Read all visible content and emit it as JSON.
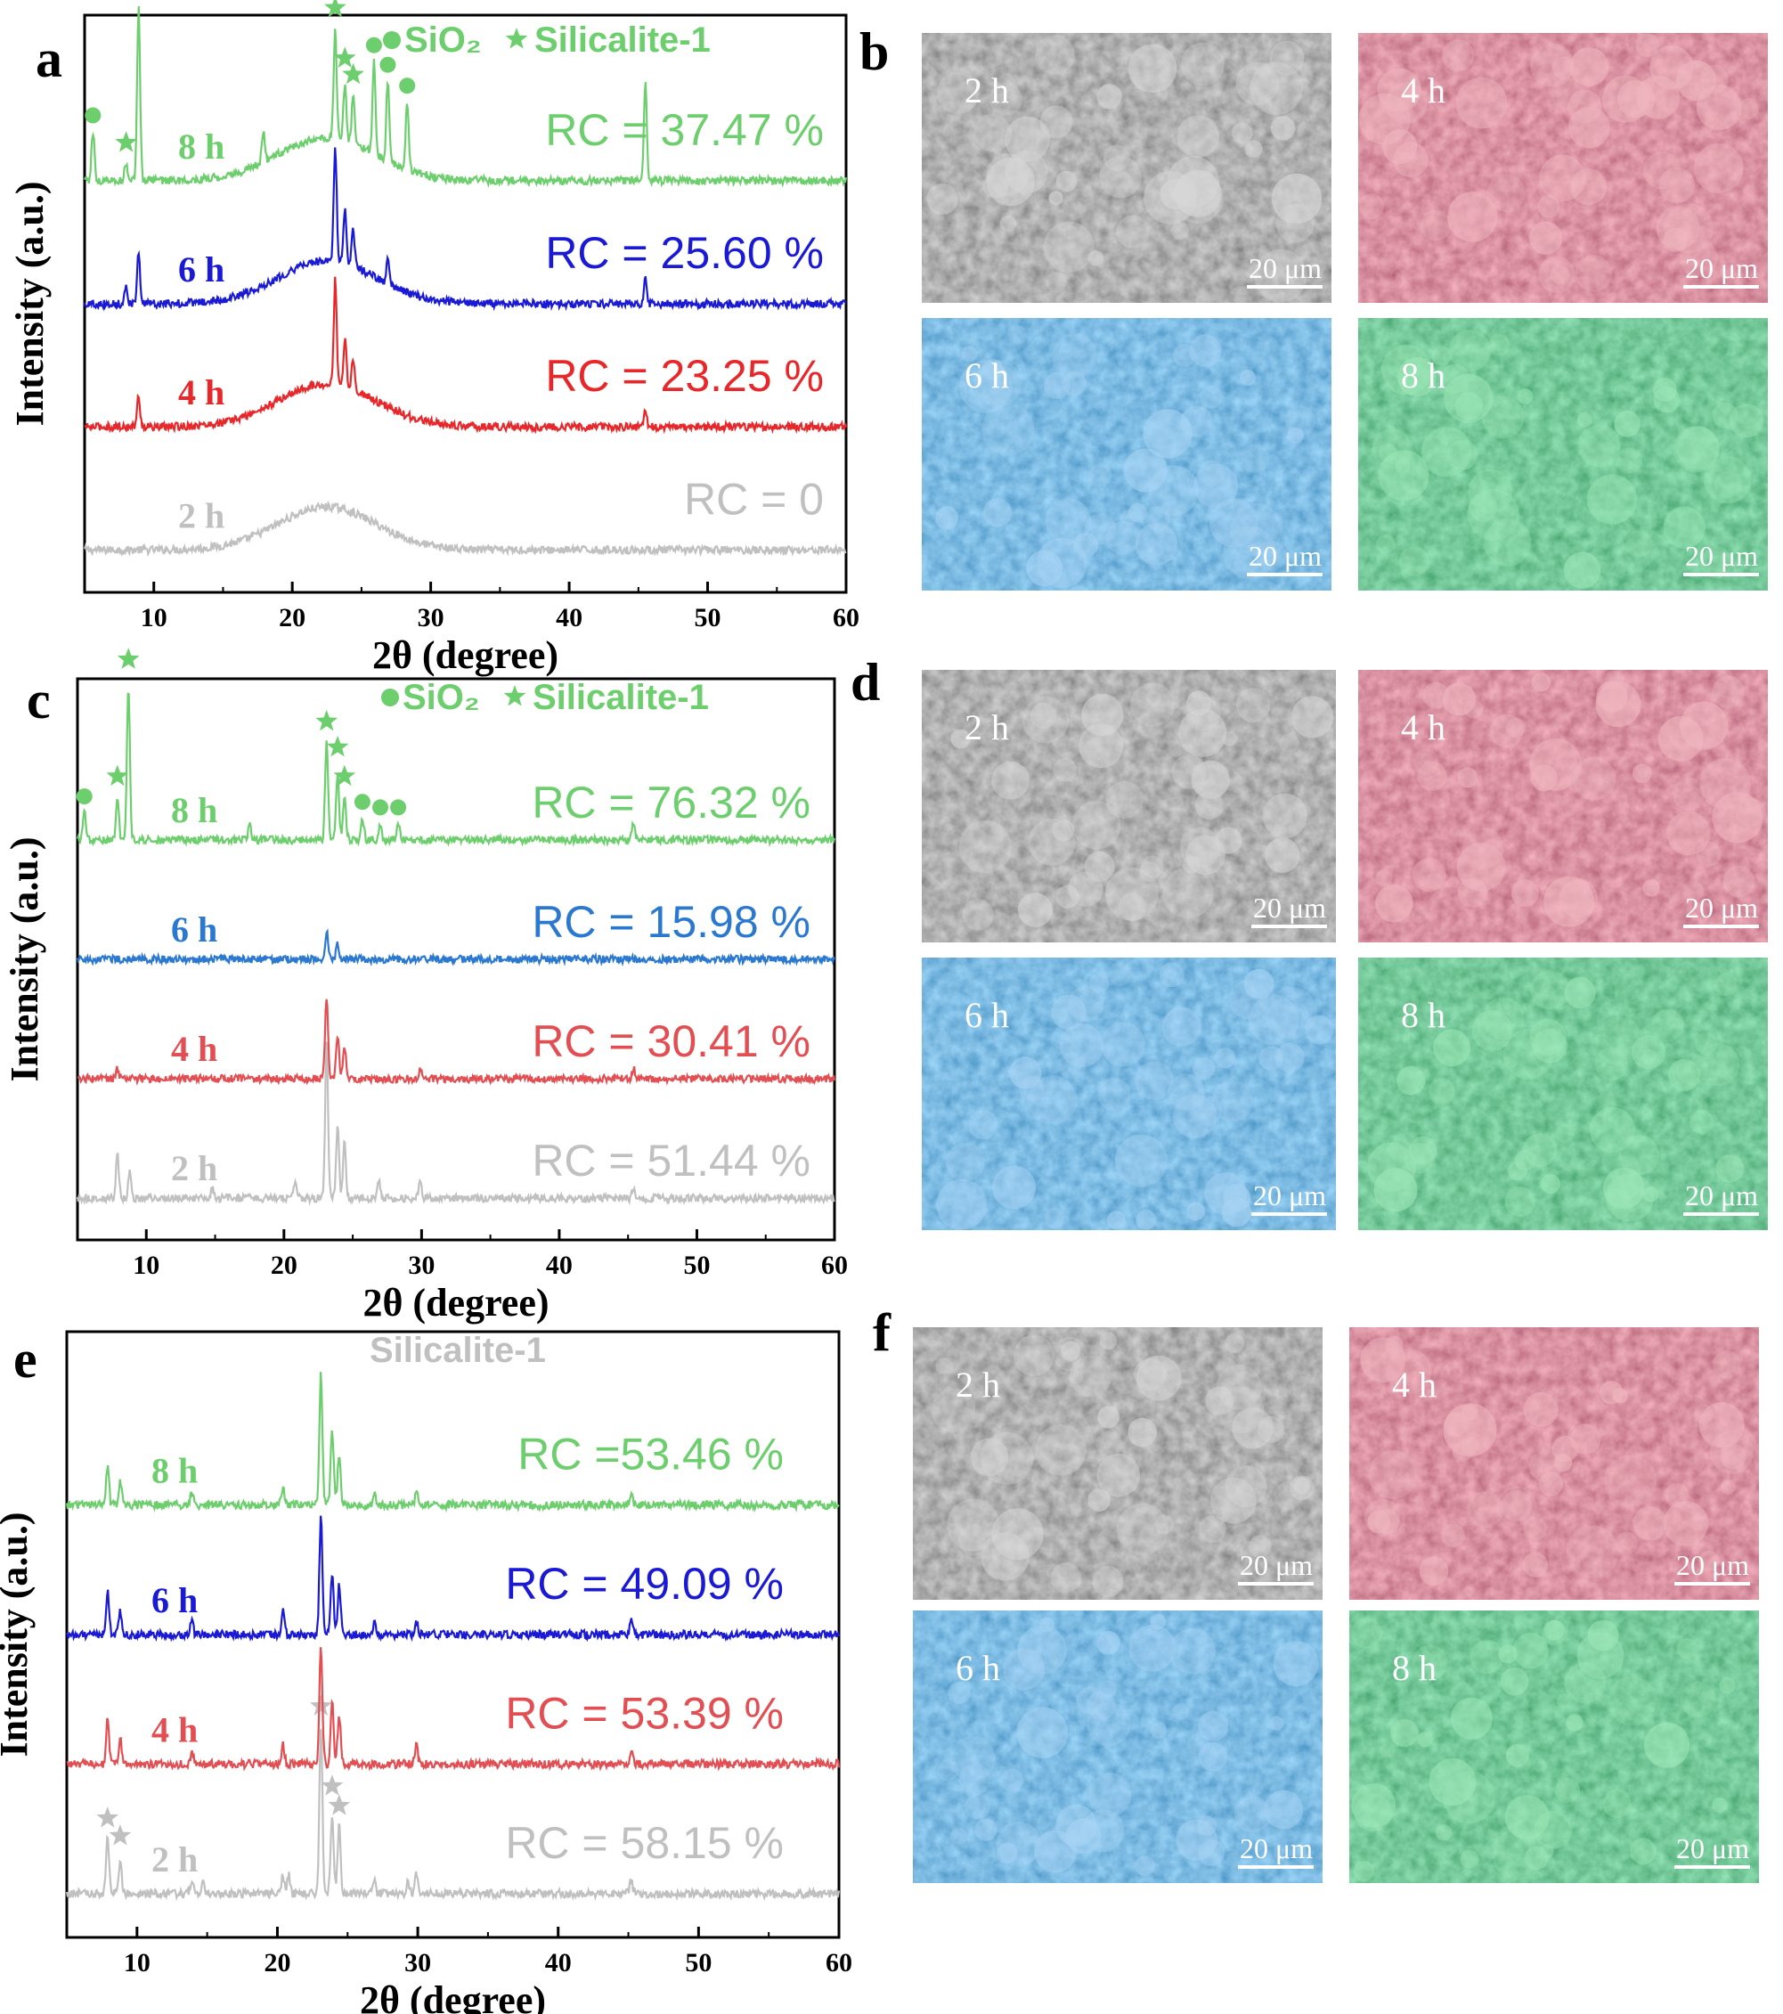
{
  "figure": {
    "panels": {
      "a": "a",
      "b": "b",
      "c": "c",
      "d": "d",
      "e": "e",
      "f": "f"
    },
    "sem_scale_label": "20 μm"
  },
  "colors": {
    "t2h": "#c0c0c0",
    "t4h": "#e8272a",
    "t6h_a": "#1a1ad6",
    "t6h_c": "#2a78d0",
    "t8h": "#6cce6c",
    "gray_sem": "#707070",
    "red_sem": "#c84a5c",
    "blue_sem": "#3d8ed0",
    "green_sem": "#2ea860"
  },
  "chart_data": [
    {
      "panel": "a",
      "type": "line",
      "xlabel": "2θ (degree)",
      "ylabel": "Intensity (a.u.)",
      "xlim": [
        5,
        60
      ],
      "xticks": [
        10,
        20,
        30,
        40,
        50,
        60
      ],
      "legend": {
        "circle_label": "SiO₂",
        "star_label": "Silicalite-1"
      },
      "series": [
        {
          "name": "2 h",
          "rc": "RC = 0",
          "color": "#c0c0c0",
          "base": 5,
          "profile": "amorphous",
          "peaks": [],
          "circles": [],
          "stars": []
        },
        {
          "name": "4 h",
          "rc": "RC = 23.25 %",
          "color": "#e8272a",
          "base": 30,
          "profile": "amorphous",
          "peaks": [
            [
              8.9,
              5
            ],
            [
              23.1,
              17
            ],
            [
              23.8,
              8
            ],
            [
              24.4,
              5
            ],
            [
              45.5,
              3
            ]
          ],
          "circles": [],
          "stars": []
        },
        {
          "name": "6 h",
          "rc": "RC = 25.60 %",
          "color": "#1a1ad6",
          "base": 55,
          "profile": "amorphous",
          "peaks": [
            [
              8.0,
              3
            ],
            [
              8.9,
              8
            ],
            [
              23.1,
              19
            ],
            [
              23.8,
              9
            ],
            [
              24.4,
              6
            ],
            [
              26.9,
              4
            ],
            [
              45.5,
              4
            ]
          ],
          "circles": [],
          "stars": []
        },
        {
          "name": "8 h",
          "rc": "RC = 37.47 %",
          "color": "#6cce6c",
          "base": 80,
          "profile": "amorphous",
          "peaks": [
            [
              5.6,
              8
            ],
            [
              8.0,
              3
            ],
            [
              8.9,
              28
            ],
            [
              17.9,
              5
            ],
            [
              23.1,
              18
            ],
            [
              23.8,
              9
            ],
            [
              24.4,
              8
            ],
            [
              25.9,
              15
            ],
            [
              26.9,
              13
            ],
            [
              28.3,
              11
            ],
            [
              45.5,
              16
            ]
          ],
          "circles": [
            5.6,
            25.9,
            26.9,
            28.3
          ],
          "stars": [
            8.0,
            8.9,
            23.1,
            23.8,
            24.4
          ]
        }
      ]
    },
    {
      "panel": "c",
      "type": "line",
      "xlabel": "2θ (degree)",
      "ylabel": "Intensity (a.u.)",
      "xlim": [
        5,
        60
      ],
      "xticks": [
        10,
        20,
        30,
        40,
        50,
        60
      ],
      "legend": {
        "circle_label": "SiO₂",
        "star_label": "Silicalite-1"
      },
      "series": [
        {
          "name": "2 h",
          "rc": "RC = 51.44 %",
          "color": "#c0c0c0",
          "base": 5,
          "profile": "crystalline",
          "peaks": [
            [
              7.9,
              8
            ],
            [
              8.8,
              5
            ],
            [
              14.8,
              2
            ],
            [
              20.8,
              3
            ],
            [
              23.1,
              28
            ],
            [
              23.9,
              13
            ],
            [
              24.4,
              10
            ],
            [
              26.9,
              3
            ],
            [
              29.9,
              3
            ],
            [
              45.4,
              2
            ]
          ],
          "circles": [],
          "stars": []
        },
        {
          "name": "4 h",
          "rc": "RC = 30.41 %",
          "color": "#e24e52",
          "base": 30,
          "profile": "crystalline",
          "peaks": [
            [
              7.9,
              2
            ],
            [
              23.1,
              15
            ],
            [
              23.9,
              8
            ],
            [
              24.4,
              6
            ],
            [
              29.9,
              2
            ],
            [
              45.4,
              2
            ]
          ],
          "circles": [],
          "stars": []
        },
        {
          "name": "6 h",
          "rc": "RC = 15.98 %",
          "color": "#2a78d0",
          "base": 55,
          "profile": "crystalline",
          "peaks": [
            [
              23.1,
              5
            ],
            [
              23.9,
              3
            ]
          ],
          "circles": [],
          "stars": []
        },
        {
          "name": "8 h",
          "rc": "RC = 76.32 %",
          "color": "#6cce6c",
          "base": 80,
          "profile": "crystalline",
          "peaks": [
            [
              5.5,
              5
            ],
            [
              7.9,
              8
            ],
            [
              8.7,
              28
            ],
            [
              17.5,
              3
            ],
            [
              23.1,
              18
            ],
            [
              23.9,
              12
            ],
            [
              24.4,
              8
            ],
            [
              25.7,
              4
            ],
            [
              27.0,
              3
            ],
            [
              28.3,
              3
            ],
            [
              45.4,
              3
            ]
          ],
          "circles": [
            5.5,
            25.7,
            27.0,
            28.3
          ],
          "stars": [
            7.9,
            8.7,
            23.1,
            23.9,
            24.4
          ]
        }
      ]
    },
    {
      "panel": "e",
      "type": "line",
      "xlabel": "2θ (degree)",
      "ylabel": "Intensity (a.u.)",
      "xlim": [
        5,
        60
      ],
      "xticks": [
        10,
        20,
        30,
        40,
        50,
        60
      ],
      "legend": {
        "label": "Silicalite-1"
      },
      "series": [
        {
          "name": "2 h",
          "rc": "RC = 58.15 %",
          "color": "#c0c0c0",
          "base": 5,
          "profile": "crystalline",
          "peaks": [
            [
              7.9,
              9
            ],
            [
              8.8,
              5
            ],
            [
              13.9,
              2
            ],
            [
              14.7,
              2
            ],
            [
              20.4,
              3
            ],
            [
              20.8,
              3
            ],
            [
              23.1,
              27
            ],
            [
              23.9,
              13
            ],
            [
              24.4,
              11
            ],
            [
              26.9,
              2
            ],
            [
              29.3,
              2
            ],
            [
              29.9,
              3
            ],
            [
              45.2,
              2
            ]
          ],
          "circles": [],
          "stars": [
            7.9,
            8.8,
            23.1,
            23.9,
            24.4
          ]
        },
        {
          "name": "4 h",
          "rc": "RC = 53.39 %",
          "color": "#e24e52",
          "base": 30,
          "profile": "crystalline",
          "peaks": [
            [
              7.9,
              7
            ],
            [
              8.8,
              4
            ],
            [
              13.9,
              2
            ],
            [
              20.4,
              3
            ],
            [
              23.1,
              19
            ],
            [
              23.9,
              10
            ],
            [
              24.4,
              8
            ],
            [
              29.9,
              3
            ],
            [
              45.2,
              2
            ]
          ],
          "circles": [],
          "stars": []
        },
        {
          "name": "6 h",
          "rc": "RC = 49.09 %",
          "color": "#1a1ad6",
          "base": 55,
          "profile": "crystalline",
          "peaks": [
            [
              7.9,
              7
            ],
            [
              8.8,
              4
            ],
            [
              13.9,
              2
            ],
            [
              20.4,
              4
            ],
            [
              23.1,
              19
            ],
            [
              23.9,
              10
            ],
            [
              24.4,
              8
            ],
            [
              26.9,
              2
            ],
            [
              29.9,
              2
            ],
            [
              45.2,
              2
            ]
          ],
          "circles": [],
          "stars": []
        },
        {
          "name": "8 h",
          "rc": "RC =53.46 %",
          "color": "#6cce6c",
          "base": 80,
          "profile": "crystalline",
          "peaks": [
            [
              7.9,
              6
            ],
            [
              8.8,
              4
            ],
            [
              13.9,
              2
            ],
            [
              20.4,
              3
            ],
            [
              23.1,
              21
            ],
            [
              23.9,
              12
            ],
            [
              24.4,
              8
            ],
            [
              26.9,
              2
            ],
            [
              29.9,
              2
            ],
            [
              45.2,
              2
            ]
          ],
          "circles": [],
          "stars": []
        }
      ]
    }
  ],
  "sem_panels": [
    {
      "panel": "b",
      "images": [
        {
          "label": "2 h",
          "color_key": "gray_sem"
        },
        {
          "label": "4 h",
          "color_key": "red_sem"
        },
        {
          "label": "6 h",
          "color_key": "blue_sem"
        },
        {
          "label": "8 h",
          "color_key": "green_sem"
        }
      ]
    },
    {
      "panel": "d",
      "images": [
        {
          "label": "2 h",
          "color_key": "gray_sem"
        },
        {
          "label": "4 h",
          "color_key": "red_sem"
        },
        {
          "label": "6 h",
          "color_key": "blue_sem"
        },
        {
          "label": "8 h",
          "color_key": "green_sem"
        }
      ]
    },
    {
      "panel": "f",
      "images": [
        {
          "label": "2 h",
          "color_key": "gray_sem"
        },
        {
          "label": "4 h",
          "color_key": "red_sem"
        },
        {
          "label": "6 h",
          "color_key": "blue_sem"
        },
        {
          "label": "8 h",
          "color_key": "green_sem"
        }
      ]
    }
  ]
}
